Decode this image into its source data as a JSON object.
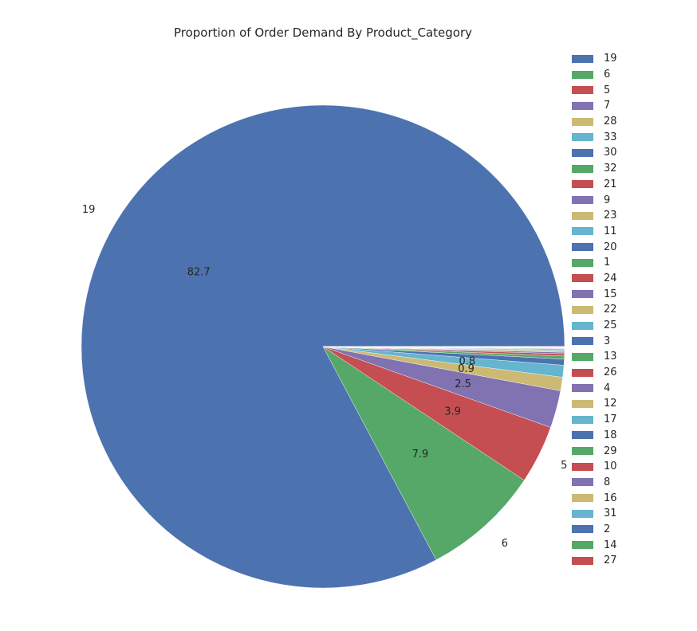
{
  "chart_data": {
    "type": "pie",
    "title": "Proportion of Order Demand By Product_Category",
    "categories": [
      "19",
      "6",
      "5",
      "7",
      "28",
      "33",
      "30",
      "32",
      "21",
      "9",
      "23",
      "11",
      "20",
      "1",
      "24",
      "15",
      "22",
      "25",
      "3",
      "13",
      "26",
      "4",
      "12",
      "17",
      "18",
      "29",
      "10",
      "8",
      "16",
      "31",
      "2",
      "14",
      "27"
    ],
    "values": [
      82.7,
      7.9,
      3.9,
      2.5,
      0.9,
      0.8,
      0.4,
      0.2,
      0.15,
      0.1,
      0.08,
      0.06,
      0.05,
      0.04,
      0.03,
      0.025,
      0.02,
      0.015,
      0.012,
      0.01,
      0.008,
      0.006,
      0.005,
      0.004,
      0.003,
      0.002,
      0.002,
      0.001,
      0.001,
      0.001,
      0.001,
      0.001,
      0.001
    ],
    "pct_labels": [
      "82.7",
      "7.9",
      "3.9",
      "2.5",
      "0.9",
      "0.8"
    ],
    "colors": [
      "#4c72b0",
      "#55a868",
      "#c44e52",
      "#8172b2",
      "#ccb974",
      "#64b5cd"
    ],
    "legend": {
      "position": "right"
    }
  }
}
